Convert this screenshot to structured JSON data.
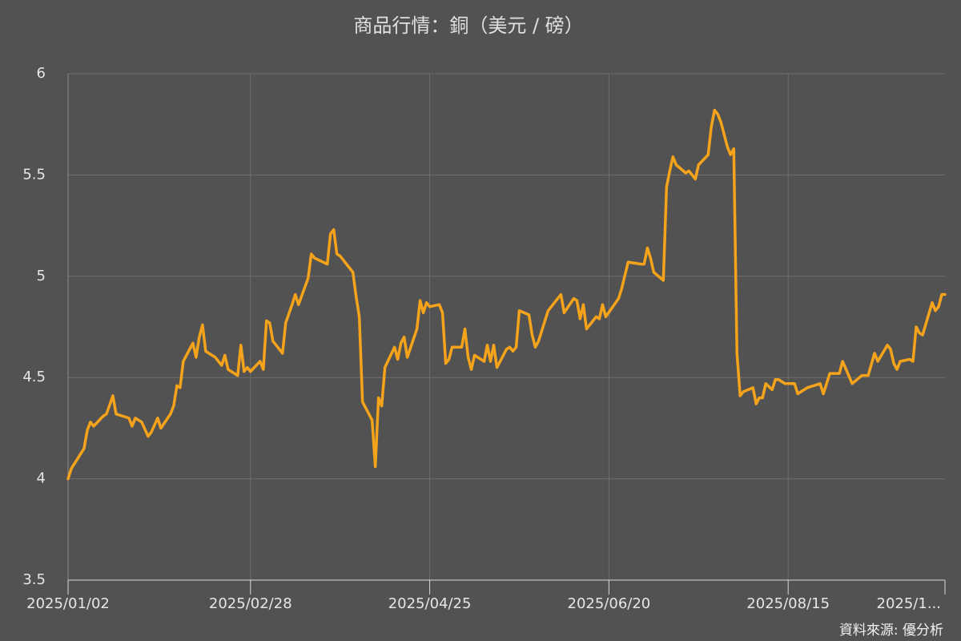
{
  "chart_data": {
    "type": "line",
    "title": "商品行情：銅（美元 / 磅）",
    "source": "資料來源: 優分析",
    "color": "#f5a31a",
    "grid": true,
    "ylim": [
      3.5,
      6
    ],
    "yticks": [
      3.5,
      4,
      4.5,
      5,
      5.5,
      6
    ],
    "xlim": [
      "2025/01/02",
      "2025/10/03"
    ],
    "xticks": [
      "2025/01/02",
      "2025/02/28",
      "2025/04/25",
      "2025/06/20",
      "2025/08/15",
      {
        "value": "2025/10/03",
        "label": "2025/1..."
      }
    ],
    "x": [
      "2025/01/02",
      "2025/01/03",
      "2025/01/07",
      "2025/01/08",
      "2025/01/09",
      "2025/01/10",
      "2025/01/13",
      "2025/01/14",
      "2025/01/16",
      "2025/01/17",
      "2025/01/21",
      "2025/01/22",
      "2025/01/23",
      "2025/01/25",
      "2025/01/27",
      "2025/01/28",
      "2025/01/30",
      "2025/01/31",
      "2025/02/03",
      "2025/02/04",
      "2025/02/05",
      "2025/02/06",
      "2025/02/07",
      "2025/02/10",
      "2025/02/11",
      "2025/02/12",
      "2025/02/13",
      "2025/02/14",
      "2025/02/17",
      "2025/02/19",
      "2025/02/20",
      "2025/02/21",
      "2025/02/24",
      "2025/02/25",
      "2025/02/26",
      "2025/02/27",
      "2025/02/28",
      "2025/03/03",
      "2025/03/04",
      "2025/03/05",
      "2025/03/06",
      "2025/03/07",
      "2025/03/10",
      "2025/03/11",
      "2025/03/13",
      "2025/03/14",
      "2025/03/15",
      "2025/03/18",
      "2025/03/19",
      "2025/03/20",
      "2025/03/24",
      "2025/03/25",
      "2025/03/26",
      "2025/03/27",
      "2025/03/28",
      "2025/04/01",
      "2025/04/02",
      "2025/04/03",
      "2025/04/04",
      "2025/04/07",
      "2025/04/08",
      "2025/04/09",
      "2025/04/10",
      "2025/04/11",
      "2025/04/14",
      "2025/04/15",
      "2025/04/16",
      "2025/04/17",
      "2025/04/18",
      "2025/04/21",
      "2025/04/22",
      "2025/04/23",
      "2025/04/24",
      "2025/04/25",
      "2025/04/28",
      "2025/04/29",
      "2025/04/30",
      "2025/05/01",
      "2025/05/02",
      "2025/05/05",
      "2025/05/06",
      "2025/05/07",
      "2025/05/08",
      "2025/05/09",
      "2025/05/12",
      "2025/05/13",
      "2025/05/14",
      "2025/05/15",
      "2025/05/16",
      "2025/05/19",
      "2025/05/20",
      "2025/05/21",
      "2025/05/22",
      "2025/05/23",
      "2025/05/26",
      "2025/05/27",
      "2025/05/28",
      "2025/05/29",
      "2025/06/01",
      "2025/06/02",
      "2025/06/05",
      "2025/06/06",
      "2025/06/09",
      "2025/06/10",
      "2025/06/11",
      "2025/06/12",
      "2025/06/13",
      "2025/06/16",
      "2025/06/17",
      "2025/06/18",
      "2025/06/19",
      "2025/06/23",
      "2025/06/24",
      "2025/06/26",
      "2025/06/30",
      "2025/07/01",
      "2025/07/02",
      "2025/07/03",
      "2025/07/04",
      "2025/07/07",
      "2025/07/08",
      "2025/07/09",
      "2025/07/10",
      "2025/07/11",
      "2025/07/14",
      "2025/07/15",
      "2025/07/17",
      "2025/07/18",
      "2025/07/21",
      "2025/07/22",
      "2025/07/23",
      "2025/07/24",
      "2025/07/25",
      "2025/07/27",
      "2025/07/28",
      "2025/07/29",
      "2025/07/30",
      "2025/07/31",
      "2025/08/01",
      "2025/08/04",
      "2025/08/05",
      "2025/08/06",
      "2025/08/07",
      "2025/08/08",
      "2025/08/10",
      "2025/08/11",
      "2025/08/12",
      "2025/08/14",
      "2025/08/17",
      "2025/08/18",
      "2025/08/19",
      "2025/08/21",
      "2025/08/25",
      "2025/08/26",
      "2025/08/28",
      "2025/08/31",
      "2025/09/01",
      "2025/09/04",
      "2025/09/07",
      "2025/09/09",
      "2025/09/11",
      "2025/09/12",
      "2025/09/15",
      "2025/09/16",
      "2025/09/17",
      "2025/09/18",
      "2025/09/19",
      "2025/09/22",
      "2025/09/23",
      "2025/09/24",
      "2025/09/25",
      "2025/09/26",
      "2025/09/29",
      "2025/09/30",
      "2025/10/01",
      "2025/10/02",
      "2025/10/03"
    ],
    "values": [
      4.0,
      4.05,
      4.15,
      4.24,
      4.28,
      4.26,
      4.31,
      4.32,
      4.41,
      4.32,
      4.3,
      4.26,
      4.3,
      4.28,
      4.21,
      4.23,
      4.3,
      4.25,
      4.32,
      4.36,
      4.46,
      4.45,
      4.58,
      4.67,
      4.6,
      4.7,
      4.76,
      4.63,
      4.6,
      4.56,
      4.61,
      4.54,
      4.51,
      4.66,
      4.53,
      4.55,
      4.53,
      4.58,
      4.54,
      4.78,
      4.77,
      4.68,
      4.62,
      4.77,
      4.86,
      4.91,
      4.86,
      4.99,
      5.11,
      5.09,
      5.06,
      5.21,
      5.23,
      5.11,
      5.1,
      5.02,
      4.9,
      4.8,
      4.38,
      4.29,
      4.06,
      4.4,
      4.36,
      4.55,
      4.65,
      4.59,
      4.67,
      4.7,
      4.6,
      4.74,
      4.88,
      4.82,
      4.87,
      4.85,
      4.86,
      4.82,
      4.57,
      4.59,
      4.65,
      4.65,
      4.74,
      4.6,
      4.54,
      4.61,
      4.58,
      4.66,
      4.58,
      4.66,
      4.55,
      4.64,
      4.65,
      4.63,
      4.65,
      4.83,
      4.81,
      4.71,
      4.65,
      4.68,
      4.83,
      4.85,
      4.91,
      4.82,
      4.89,
      4.88,
      4.79,
      4.86,
      4.74,
      4.8,
      4.79,
      4.86,
      4.8,
      4.89,
      4.94,
      5.07,
      5.06,
      5.06,
      5.14,
      5.09,
      5.02,
      4.98,
      5.44,
      5.52,
      5.59,
      5.55,
      5.51,
      5.52,
      5.48,
      5.55,
      5.6,
      5.74,
      5.82,
      5.8,
      5.76,
      5.64,
      5.6,
      5.63,
      4.62,
      4.41,
      4.43,
      4.45,
      4.37,
      4.4,
      4.4,
      4.47,
      4.44,
      4.49,
      4.49,
      4.47,
      4.47,
      4.42,
      4.43,
      4.45,
      4.47,
      4.42,
      4.52,
      4.52,
      4.58,
      4.47,
      4.51,
      4.51,
      4.62,
      4.58,
      4.66,
      4.64,
      4.57,
      4.54,
      4.58,
      4.59,
      4.58,
      4.75,
      4.72,
      4.71,
      4.87,
      4.83,
      4.85,
      4.91,
      4.91
    ]
  }
}
